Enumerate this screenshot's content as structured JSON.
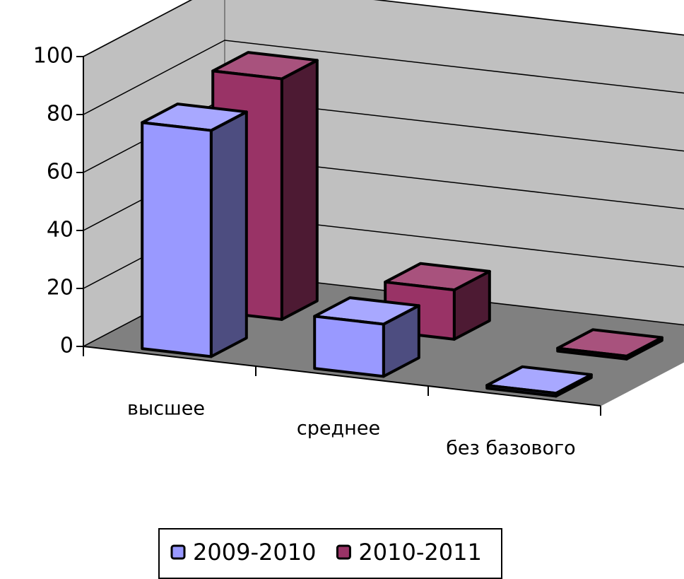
{
  "chart_data": {
    "type": "bar3d",
    "categories": [
      "высшее",
      "среднее",
      "без базового"
    ],
    "series": [
      {
        "name": "2009-2010",
        "color": "#9999ff",
        "values": [
          78,
          18,
          1
        ]
      },
      {
        "name": "2010-2011",
        "color": "#993366",
        "values": [
          83,
          17,
          1
        ]
      }
    ],
    "ylim": [
      0,
      100
    ],
    "yticks": [
      0,
      20,
      40,
      60,
      80,
      100
    ],
    "grid": true,
    "legend": "bottom"
  }
}
